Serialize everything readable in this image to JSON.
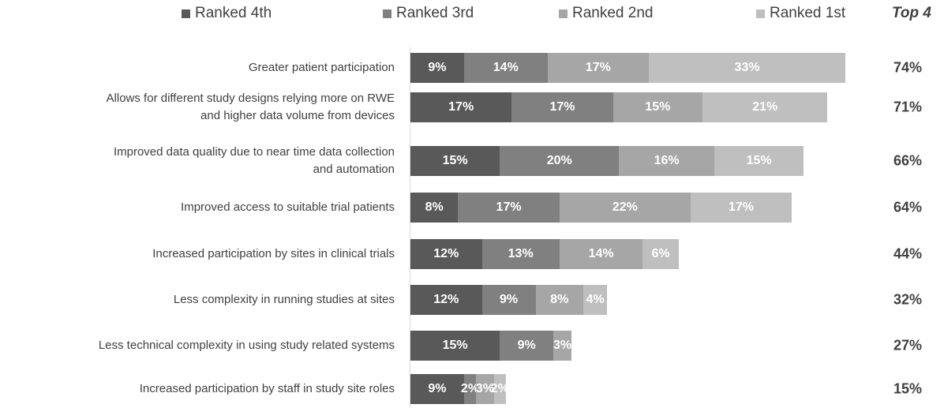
{
  "chart_data": {
    "type": "stacked-bar-horizontal",
    "totals_title": "Top 4",
    "categories": [
      "Greater patient participation",
      "Allows for different study designs relying more on RWE\nand higher data volume from devices",
      "Improved data quality due to near time data collection\nand automation",
      "Improved access to suitable trial patients",
      "Increased participation by sites in clinical trials",
      "Less complexity in running studies at sites",
      "Less technical complexity in using study related systems",
      "Increased participation by staff in study site roles"
    ],
    "series": [
      {
        "name": "Ranked 4th",
        "color": "#595959",
        "values": [
          9,
          17,
          15,
          8,
          12,
          12,
          15,
          9
        ],
        "value_labels": [
          "9%",
          "17%",
          "15%",
          "8%",
          "12%",
          "12%",
          "15%",
          "9%"
        ]
      },
      {
        "name": "Ranked 3rd",
        "color": "#808080",
        "values": [
          14,
          17,
          20,
          17,
          13,
          9,
          9,
          2
        ],
        "value_labels": [
          "14%",
          "17%",
          "20%",
          "17%",
          "13%",
          "9%",
          "9%",
          "2%"
        ]
      },
      {
        "name": "Ranked 2nd",
        "color": "#a6a6a6",
        "values": [
          17,
          15,
          16,
          22,
          14,
          8,
          3,
          3
        ],
        "value_labels": [
          "17%",
          "15%",
          "16%",
          "22%",
          "14%",
          "8%",
          "3%",
          "3%"
        ]
      },
      {
        "name": "Ranked 1st",
        "color": "#bfbfbf",
        "values": [
          33,
          21,
          15,
          17,
          6,
          4,
          null,
          2
        ],
        "value_labels": [
          "33%",
          "21%",
          "15%",
          "17%",
          "6%",
          "4%",
          null,
          "2%"
        ]
      }
    ],
    "totals": [
      74,
      71,
      66,
      64,
      44,
      32,
      27,
      15
    ],
    "total_labels": [
      "74%",
      "71%",
      "66%",
      "64%",
      "44%",
      "32%",
      "27%",
      "15%"
    ]
  }
}
